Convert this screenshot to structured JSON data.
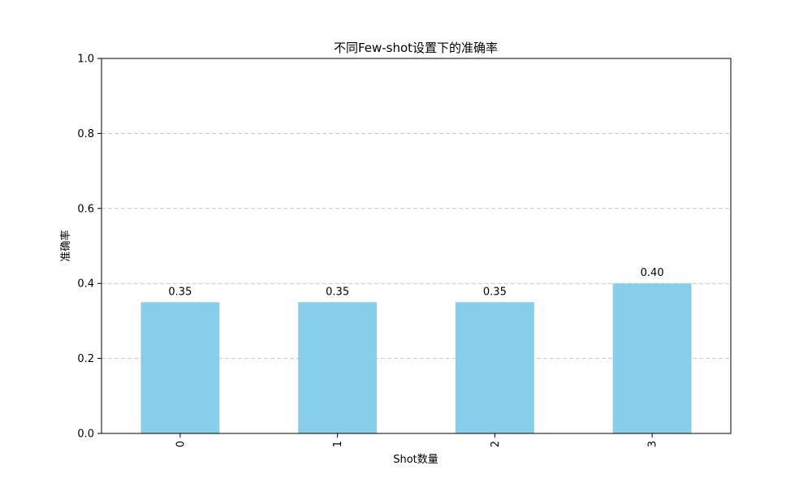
{
  "chart_data": {
    "type": "bar",
    "title": "不同Few-shot设置下的准确率",
    "xlabel": "Shot数量",
    "ylabel": "准确率",
    "categories": [
      "0",
      "1",
      "2",
      "3"
    ],
    "values": [
      0.35,
      0.35,
      0.35,
      0.4
    ],
    "data_labels": [
      "0.35",
      "0.35",
      "0.35",
      "0.40"
    ],
    "ylim": [
      0,
      1.0
    ],
    "yticks": [
      "0.0",
      "0.2",
      "0.4",
      "0.6",
      "0.8",
      "1.0"
    ],
    "grid": "y, dashed",
    "legend": "none",
    "x_tick_rotation": "vertical",
    "bar_color": "#87ceeb"
  }
}
